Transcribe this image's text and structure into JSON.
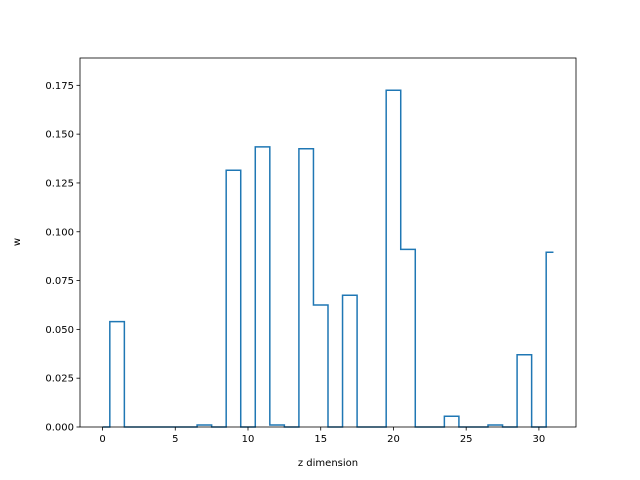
{
  "chart_data": {
    "type": "step",
    "title": "",
    "xlabel": "z dimension",
    "ylabel": "w",
    "xlim": [
      -1.55,
      32.55
    ],
    "ylim": [
      0,
      0.189
    ],
    "xticks": [
      0,
      5,
      10,
      15,
      20,
      25,
      30
    ],
    "xtick_labels": [
      "0",
      "5",
      "10",
      "15",
      "20",
      "25",
      "30"
    ],
    "yticks": [
      0,
      0.025,
      0.05,
      0.075,
      0.1,
      0.125,
      0.15,
      0.175
    ],
    "ytick_labels": [
      "0.000",
      "0.025",
      "0.050",
      "0.075",
      "0.100",
      "0.125",
      "0.150",
      "0.175"
    ],
    "grid": false,
    "series": [
      {
        "color": "#1f77b4",
        "x": [
          0,
          1,
          2,
          3,
          4,
          5,
          6,
          7,
          8,
          9,
          10,
          11,
          12,
          13,
          14,
          15,
          16,
          17,
          18,
          19,
          20,
          21,
          22,
          23,
          24,
          25,
          26,
          27,
          28,
          29,
          30,
          31
        ],
        "values": [
          0.0,
          0.054,
          0.0,
          0.0,
          0.0,
          0.0,
          0.0,
          0.001,
          0.0,
          0.1315,
          0.0,
          0.1435,
          0.001,
          0.0,
          0.1425,
          0.0625,
          0.0,
          0.0675,
          0.0,
          0.0,
          0.1725,
          0.091,
          0.0,
          0.0,
          0.0055,
          0.0,
          0.0,
          0.001,
          0.0,
          0.037,
          0.0,
          0.0895
        ]
      }
    ]
  }
}
